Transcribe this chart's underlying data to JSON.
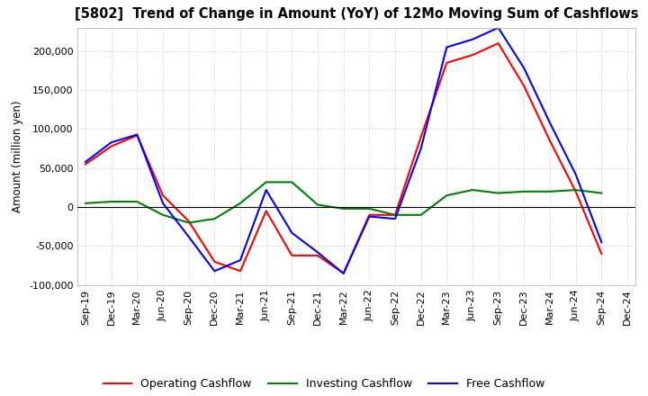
{
  "title": "[5802]  Trend of Change in Amount (YoY) of 12Mo Moving Sum of Cashflows",
  "ylabel": "Amount (million yen)",
  "x_labels": [
    "Sep-19",
    "Dec-19",
    "Mar-20",
    "Jun-20",
    "Sep-20",
    "Dec-20",
    "Mar-21",
    "Jun-21",
    "Sep-21",
    "Dec-21",
    "Mar-22",
    "Jun-22",
    "Sep-22",
    "Dec-22",
    "Mar-23",
    "Jun-23",
    "Sep-23",
    "Dec-23",
    "Mar-24",
    "Jun-24",
    "Sep-24",
    "Dec-24"
  ],
  "operating": [
    55000,
    78000,
    92000,
    15000,
    -18000,
    -70000,
    -82000,
    -5000,
    -62000,
    -62000,
    -85000,
    -10000,
    -10000,
    90000,
    185000,
    195000,
    210000,
    155000,
    85000,
    20000,
    -60000,
    null
  ],
  "investing": [
    5000,
    7000,
    7000,
    -10000,
    -20000,
    -15000,
    5000,
    32000,
    32000,
    3000,
    -2000,
    -2000,
    -10000,
    -10000,
    15000,
    22000,
    18000,
    20000,
    20000,
    22000,
    18000,
    null
  ],
  "free": [
    58000,
    83000,
    93000,
    5000,
    -38000,
    -82000,
    -68000,
    22000,
    -33000,
    -58000,
    -85000,
    -12000,
    -15000,
    75000,
    205000,
    215000,
    230000,
    178000,
    108000,
    42000,
    -45000,
    null
  ],
  "ylim": [
    -100000,
    230000
  ],
  "yticks": [
    -100000,
    -50000,
    0,
    50000,
    100000,
    150000,
    200000
  ],
  "operating_color": "#ff0000",
  "investing_color": "#008000",
  "free_color": "#0000ff",
  "background_color": "#ffffff",
  "grid_color": "#b0b0b0",
  "title_fontsize": 10.5,
  "axis_fontsize": 8.5,
  "tick_fontsize": 8
}
